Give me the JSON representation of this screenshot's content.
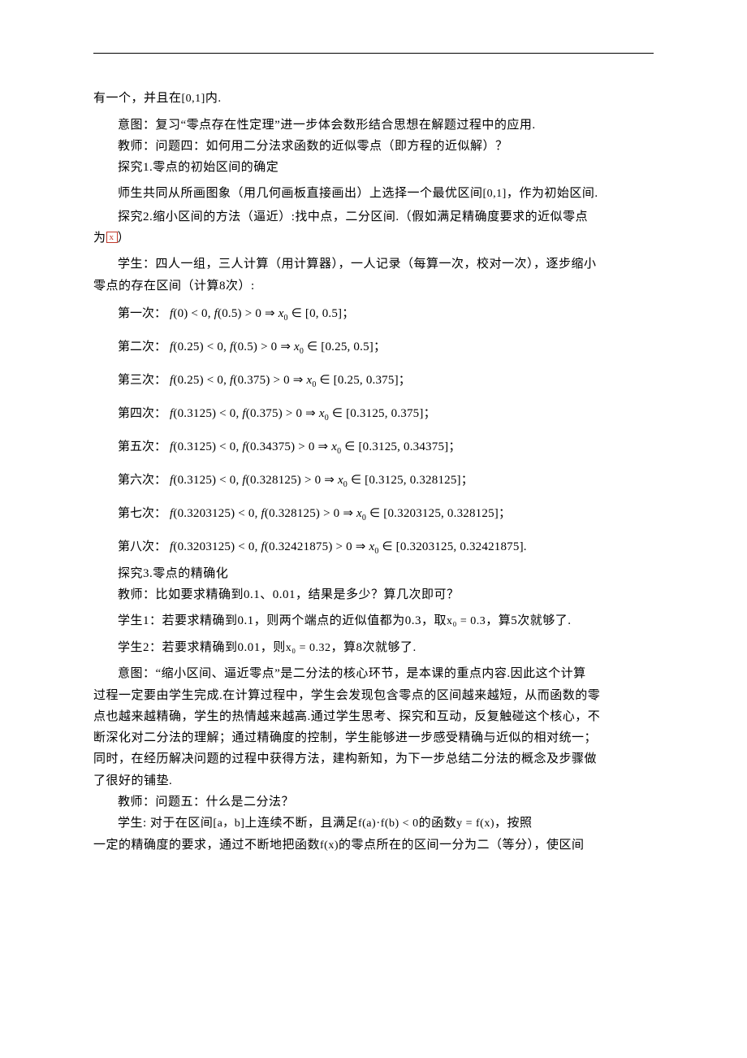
{
  "ln1": "有一个，并且在",
  "ln1_int": "[0,1]",
  "ln1b": "内.",
  "ln2": "意图：复习“零点存在性定理”进一步体会数形结合思想在解题过程中的应用.",
  "ln3": "教师：问题四：如何用二分法求函数的近似零点（即方程的近似解）？",
  "ln4": "探究1.零点的初始区间的确定",
  "ln5a": "师生共同从所画图象（用几何画板直接画出）上选择一个最优区间",
  "ln5_int": "[0,1]",
  "ln5b": "，作为初始区间.",
  "ln6": "探究2.缩小区间的方法（逼近）:找中点，二分区间.（假如满足精确度要求的近似零点",
  "ln6b_a": "为",
  "ln6b_x": "x",
  "ln6b_b": "）",
  "ln7": "学生：四人一组，三人计算（用计算器），一人记录（每算一次，校对一次），逐步缩小",
  "ln7b": "零点的存在区间（计算8次）:",
  "iterations": [
    {
      "label": "第一次：",
      "math": "f(0) < 0, f(0.5) > 0 ⇒ x₀ ∈ [0, 0.5]",
      "term": "；"
    },
    {
      "label": "第二次：",
      "math": "f(0.25) < 0, f(0.5) > 0 ⇒ x₀ ∈ [0.25, 0.5]",
      "term": "；"
    },
    {
      "label": "第三次：",
      "math": "f(0.25) < 0, f(0.375) > 0 ⇒ x₀ ∈ [0.25, 0.375]",
      "term": "；"
    },
    {
      "label": "第四次：",
      "math": "f(0.3125) < 0, f(0.375) > 0 ⇒ x₀ ∈ [0.3125, 0.375]",
      "term": "；"
    },
    {
      "label": "第五次：",
      "math": "f(0.3125) < 0, f(0.34375) > 0 ⇒ x₀ ∈ [0.3125, 0.34375]",
      "term": "；"
    },
    {
      "label": "第六次：",
      "math": "f(0.3125) < 0, f(0.328125) > 0 ⇒ x₀ ∈ [0.3125, 0.328125]",
      "term": "；"
    },
    {
      "label": "第七次：",
      "math": "f(0.3203125) < 0, f(0.328125) > 0 ⇒ x₀ ∈ [0.3203125, 0.328125]",
      "term": "；"
    },
    {
      "label": "第八次：",
      "math": "f(0.3203125) < 0, f(0.32421875) > 0 ⇒ x₀ ∈ [0.3203125, 0.32421875]",
      "term": "."
    }
  ],
  "ln8": "探究3.零点的精确化",
  "ln9": "教师：比如要求精确到0.1、0.01，结果是多少？算几次即可？",
  "ln10a": "学生1：若要求精确到0.1，则两个端点的近似值都为0.3，取",
  "ln10_math": "x₀ = 0.3",
  "ln10b": "，算5次就够了.",
  "ln11a": "学生2：若要求精确到0.01，则",
  "ln11_math": "x₀ = 0.32",
  "ln11b": "，算8次就够了.",
  "ln12": "意图：“缩小区间、逼近零点”是二分法的核心环节，是本课的重点内容.因此这个计算",
  "ln12b": "过程一定要由学生完成.在计算过程中，学生会发现包含零点的区间越来越短，从而函数的零",
  "ln12c": "点也越来越精确，学生的热情越来越高.通过学生思考、探究和互动，反复触碰这个核心，不",
  "ln12d": "断深化对二分法的理解；通过精确度的控制，学生能够进一步感受精确与近似的相对统一；",
  "ln12e": "同时，在经历解决问题的过程中获得方法，建构新知，为下一步总结二分法的概念及步骤做",
  "ln12f": "了很好的铺垫.",
  "ln13": "教师：问题五：什么是二分法？",
  "ln14a": "学生: 对于在区间",
  "ln14_int": "[a，b]",
  "ln14b": "上连续不断，且满足",
  "ln14_m1": "f(a)",
  "ln14_dot": "·",
  "ln14_m2": "f(b) < 0",
  "ln14c": "的函数",
  "ln14_m3": "y = f(x)",
  "ln14d": "，按照",
  "ln15a": "一定的精确度的要求，通过不断地把函数",
  "ln15_m": "f(x)",
  "ln15b": "的零点所在的区间一分为二（等分），使区间"
}
